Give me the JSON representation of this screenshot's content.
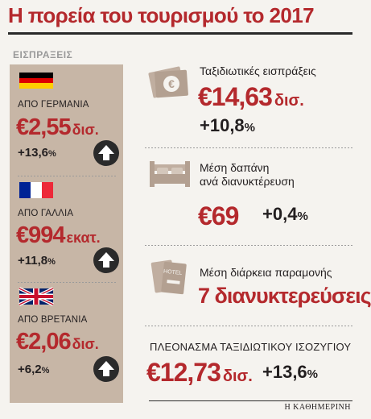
{
  "title": "Η πορεία του τουρισμού το 2017",
  "receipts_label": "ΕΙΣΠΡΑΞΕΙΣ",
  "countries": [
    {
      "name": "ΑΠΟ ΓΕΡΜΑΝΙΑ",
      "value": "€2,55",
      "unit": "δισ.",
      "change": "+13,6",
      "flag": "germany-flag"
    },
    {
      "name": "ΑΠΟ ΓΑΛΛΙΑ",
      "value": "€994",
      "unit": "εκατ.",
      "change": "+11,8",
      "flag": "france-flag"
    },
    {
      "name": "ΑΠΟ ΒΡΕΤΑΝΙΑ",
      "value": "€2,06",
      "unit": "δισ.",
      "change": "+6,2",
      "flag": "uk-flag"
    }
  ],
  "percent_sign": "%",
  "travel_receipts": {
    "label": "Ταξιδιωτικές εισπράξεις",
    "value": "€14,63",
    "unit": "δισ.",
    "change": "+10,8",
    "icon": "money-icon"
  },
  "avg_spend": {
    "label_line1": "Μέση δαπάνη",
    "label_line2": "ανά διανυκτέρευση",
    "value": "€69",
    "change": "+0,4",
    "icon": "bed-icon"
  },
  "avg_stay": {
    "label": "Μέση διάρκεια παραμονής",
    "value": "7 διανυκτερεύσεις",
    "icon": "hotel-key-icon",
    "key_tag_text": "HOTEL"
  },
  "surplus": {
    "label": "ΠΛΕΟΝΑΣΜΑ ΤΑΞΙΔΙΩΤΙΚΟΥ ΙΣΟΖΥΓΙΟΥ",
    "value": "€12,73",
    "unit": "δισ.",
    "change": "+13,6"
  },
  "money_symbol": "€",
  "source": "Η ΚΑΘΗΜΕΡΙΝΗ",
  "colors": {
    "accent": "#b4292d",
    "panel": "#c7b6a6",
    "icon": "#c0aea0",
    "dark": "#2a2a2a"
  }
}
